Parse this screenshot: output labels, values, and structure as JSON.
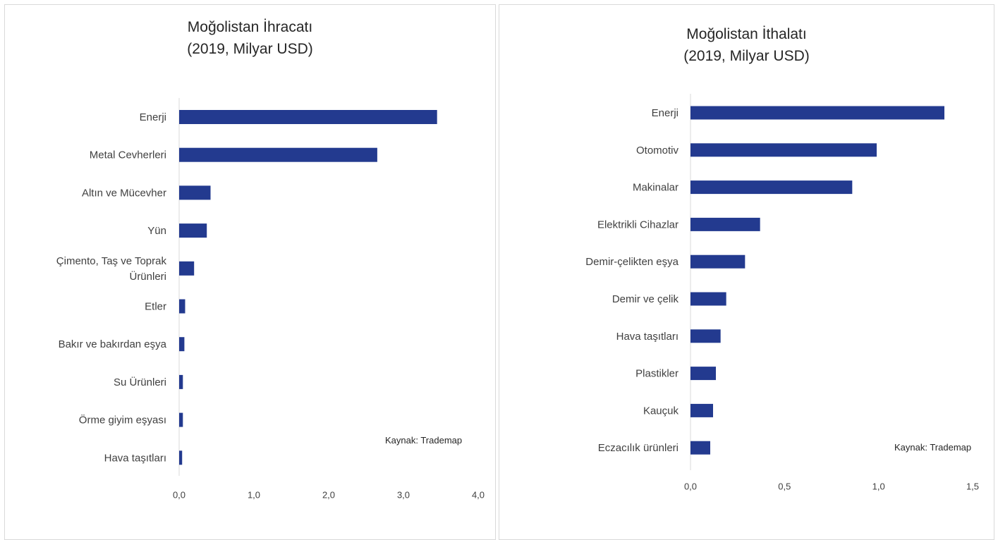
{
  "colors": {
    "bar": "#233A8F",
    "axis": "#d9d9d9",
    "text": "#404040"
  },
  "chart_data": [
    {
      "type": "bar",
      "orientation": "horizontal",
      "title": "Moğolistan İhracatı",
      "subtitle": "(2019, Milyar USD)",
      "categories": [
        "Enerji",
        "Metal Cevherleri",
        "Altın ve Mücevher",
        "Yün",
        "Çimento, Taş ve Toprak Ürünleri",
        "Etler",
        "Bakır ve bakırdan eşya",
        "Su Ürünleri",
        "Örme giyim eşyası",
        "Hava taşıtları"
      ],
      "category_lines": [
        [
          "Enerji"
        ],
        [
          "Metal Cevherleri"
        ],
        [
          "Altın ve Mücevher"
        ],
        [
          "Yün"
        ],
        [
          "Çimento, Taş ve Toprak",
          "Ürünleri"
        ],
        [
          "Etler"
        ],
        [
          "Bakır ve bakırdan eşya"
        ],
        [
          "Su Ürünleri"
        ],
        [
          "Örme giyim eşyası"
        ],
        [
          "Hava taşıtları"
        ]
      ],
      "values": [
        3.45,
        2.65,
        0.42,
        0.37,
        0.2,
        0.08,
        0.07,
        0.05,
        0.05,
        0.04
      ],
      "xlim": [
        0,
        4
      ],
      "xticks": [
        0,
        1,
        2,
        3,
        4
      ],
      "xtick_labels": [
        "0,0",
        "1,0",
        "2,0",
        "3,0",
        "4,0"
      ],
      "grid": false,
      "source": "Kaynak: Trademap"
    },
    {
      "type": "bar",
      "orientation": "horizontal",
      "title": "Moğolistan İthalatı",
      "subtitle": "(2019, Milyar USD)",
      "categories": [
        "Enerji",
        "Otomotiv",
        "Makinalar",
        "Elektrikli Cihazlar",
        "Demir-çelikten eşya",
        "Demir ve çelik",
        "Hava taşıtları",
        "Plastikler",
        "Kauçuk",
        "Eczacılık ürünleri"
      ],
      "category_lines": [
        [
          "Enerji"
        ],
        [
          "Otomotiv"
        ],
        [
          "Makinalar"
        ],
        [
          "Elektrikli Cihazlar"
        ],
        [
          "Demir-çelikten eşya"
        ],
        [
          "Demir ve çelik"
        ],
        [
          "Hava taşıtları"
        ],
        [
          "Plastikler"
        ],
        [
          "Kauçuk"
        ],
        [
          "Eczacılık ürünleri"
        ]
      ],
      "values": [
        1.35,
        0.99,
        0.86,
        0.37,
        0.29,
        0.19,
        0.16,
        0.135,
        0.12,
        0.105
      ],
      "xlim": [
        0,
        1.5
      ],
      "xticks": [
        0,
        0.5,
        1.0,
        1.5
      ],
      "xtick_labels": [
        "0,0",
        "0,5",
        "1,0",
        "1,5"
      ],
      "grid": false,
      "source": "Kaynak: Trademap"
    }
  ]
}
